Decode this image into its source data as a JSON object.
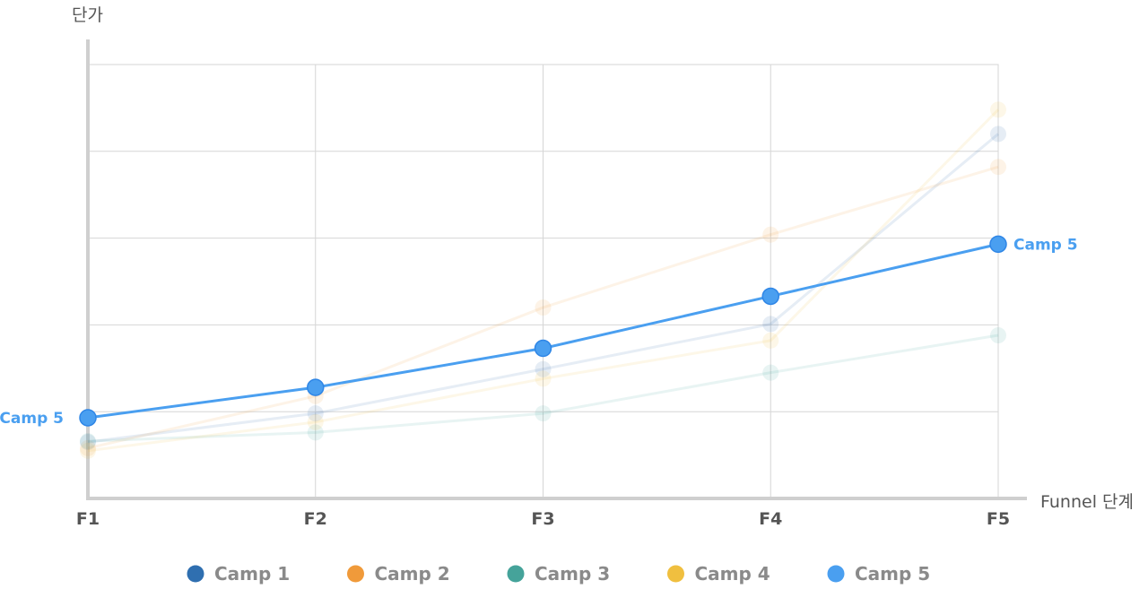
{
  "chart_data": {
    "type": "line",
    "title": "",
    "xlabel": "Funnel 단계",
    "ylabel": "단가",
    "categories": [
      "F1",
      "F2",
      "F3",
      "F4",
      "F5"
    ],
    "ylim": [
      0,
      500
    ],
    "grid": true,
    "legend": "bottom",
    "highlighted_series": "Camp 5",
    "series": [
      {
        "name": "Camp 1",
        "color": "#2f6fb0",
        "values": [
          65,
          98,
          149,
          201,
          420
        ]
      },
      {
        "name": "Camp 2",
        "color": "#f09a3a",
        "values": [
          58,
          118,
          220,
          304,
          382
        ]
      },
      {
        "name": "Camp 3",
        "color": "#45a39a",
        "values": [
          66,
          76,
          98,
          145,
          188
        ]
      },
      {
        "name": "Camp 4",
        "color": "#f0bf3f",
        "values": [
          55,
          88,
          138,
          182,
          448
        ]
      },
      {
        "name": "Camp 5",
        "color": "#4a9ff0",
        "values": [
          93,
          128,
          173,
          233,
          293
        ]
      }
    ]
  }
}
